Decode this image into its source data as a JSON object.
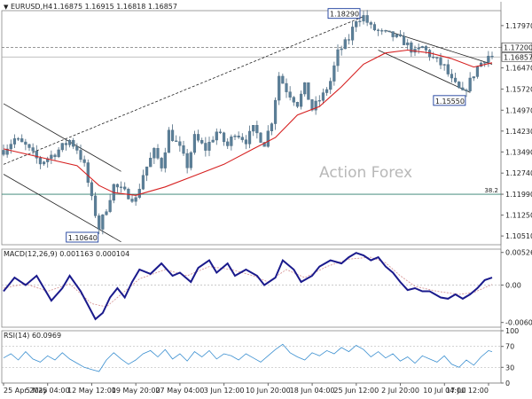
{
  "chart_data": [
    {
      "type": "candlestick",
      "header": {
        "symbol": "EURUSD,H4",
        "ohlc": "1.16875 1.16915 1.16818 1.16857"
      },
      "watermark": "Action Forex",
      "x_ticks": [
        "25 Apr 2025",
        "5 May 04:00",
        "12 May 12:00",
        "19 May 20:00",
        "27 May 04:00",
        "3 Jun 12:00",
        "10 Jun 20:00",
        "18 Jun 04:00",
        "25 Jun 12:00",
        "2 Jul 20:00",
        "10 Jul 04:00",
        "17 Jul 12:00"
      ],
      "y_ticks": [
        "1.17970",
        "1.17200",
        "1.16470",
        "1.15720",
        "1.14970",
        "1.14230",
        "1.13490",
        "1.12740",
        "1.11990",
        "1.11250",
        "1.10510"
      ],
      "ylim": [
        1.102,
        1.185
      ],
      "price_path": [
        [
          0,
          1.1355
        ],
        [
          3,
          1.1395
        ],
        [
          6,
          1.137
        ],
        [
          10,
          1.131
        ],
        [
          14,
          1.1345
        ],
        [
          18,
          1.139
        ],
        [
          20,
          1.136
        ],
        [
          22,
          1.13
        ],
        [
          24,
          1.118
        ],
        [
          26,
          1.108
        ],
        [
          28,
          1.115
        ],
        [
          30,
          1.123
        ],
        [
          33,
          1.1205
        ],
        [
          36,
          1.118
        ],
        [
          38,
          1.127
        ],
        [
          41,
          1.135
        ],
        [
          43,
          1.13
        ],
        [
          45,
          1.142
        ],
        [
          48,
          1.136
        ],
        [
          50,
          1.13
        ],
        [
          52,
          1.14
        ],
        [
          55,
          1.136
        ],
        [
          58,
          1.142
        ],
        [
          61,
          1.137
        ],
        [
          63,
          1.142
        ],
        [
          66,
          1.139
        ],
        [
          68,
          1.143
        ],
        [
          71,
          1.138
        ],
        [
          73,
          1.146
        ],
        [
          75,
          1.162
        ],
        [
          77,
          1.157
        ],
        [
          80,
          1.152
        ],
        [
          82,
          1.158
        ],
        [
          84,
          1.15
        ],
        [
          87,
          1.155
        ],
        [
          89,
          1.16
        ],
        [
          91,
          1.17
        ],
        [
          94,
          1.175
        ],
        [
          96,
          1.182
        ],
        [
          98,
          1.1829
        ],
        [
          100,
          1.179
        ],
        [
          103,
          1.177
        ],
        [
          106,
          1.176
        ],
        [
          109,
          1.174
        ],
        [
          112,
          1.17
        ],
        [
          114,
          1.172
        ],
        [
          117,
          1.168
        ],
        [
          120,
          1.165
        ],
        [
          122,
          1.16
        ],
        [
          124,
          1.157
        ],
        [
          125,
          1.1555
        ],
        [
          127,
          1.16
        ],
        [
          129,
          1.165
        ],
        [
          131,
          1.168
        ],
        [
          132,
          1.169
        ],
        [
          133,
          1.16857
        ]
      ],
      "ma_path": [
        [
          0,
          1.136
        ],
        [
          10,
          1.133
        ],
        [
          20,
          1.13
        ],
        [
          26,
          1.123
        ],
        [
          30,
          1.1205
        ],
        [
          36,
          1.1195
        ],
        [
          44,
          1.1225
        ],
        [
          52,
          1.1265
        ],
        [
          60,
          1.1305
        ],
        [
          68,
          1.136
        ],
        [
          74,
          1.14
        ],
        [
          80,
          1.148
        ],
        [
          86,
          1.151
        ],
        [
          92,
          1.158
        ],
        [
          98,
          1.166
        ],
        [
          104,
          1.17
        ],
        [
          110,
          1.171
        ],
        [
          116,
          1.17
        ],
        [
          122,
          1.168
        ],
        [
          128,
          1.165
        ],
        [
          133,
          1.1665
        ]
      ],
      "annotations": {
        "peak": {
          "label": "1.18290",
          "x": 98,
          "y": 1.1829
        },
        "low_may": {
          "label": "1.10640",
          "x": 26,
          "y": 1.1064
        },
        "low_jul": {
          "label": "1.15550",
          "x": 125,
          "y": 1.1555
        },
        "fib": {
          "label": "38.2",
          "y": 1.1199
        },
        "resistance": {
          "label": "1.17200",
          "y": 1.172
        },
        "last_price": {
          "label": "1.16857",
          "y": 1.16857
        },
        "trendline_up": [
          [
            0,
            1.1305
          ],
          [
            98,
            1.1829
          ]
        ],
        "channel_may_upper": [
          [
            0,
            1.152
          ],
          [
            32,
            1.128
          ]
        ],
        "channel_may_lower": [
          [
            0,
            1.127
          ],
          [
            32,
            1.103
          ]
        ],
        "channel_jul_upper": [
          [
            104,
            1.178
          ],
          [
            133,
            1.166
          ]
        ],
        "channel_jul_lower": [
          [
            102,
            1.171
          ],
          [
            127,
            1.156
          ]
        ]
      },
      "n_bars": 134
    },
    {
      "type": "macd",
      "header": "MACD(12,26,9) 0.001163 0.000104",
      "y_ticks": [
        "0.005267",
        "0.00",
        "-0.00604"
      ],
      "ylim": [
        -0.0068,
        0.0058
      ],
      "main_path": [
        [
          0,
          -0.001
        ],
        [
          3,
          0.0012
        ],
        [
          6,
          0.0
        ],
        [
          9,
          0.0015
        ],
        [
          13,
          -0.0025
        ],
        [
          16,
          -0.0005
        ],
        [
          18,
          0.0015
        ],
        [
          21,
          -0.001
        ],
        [
          25,
          -0.0055
        ],
        [
          27,
          -0.0045
        ],
        [
          29,
          -0.002
        ],
        [
          31,
          -0.0005
        ],
        [
          33,
          -0.002
        ],
        [
          35,
          0.0005
        ],
        [
          37,
          0.0025
        ],
        [
          40,
          0.0018
        ],
        [
          43,
          0.0035
        ],
        [
          46,
          0.0015
        ],
        [
          48,
          0.002
        ],
        [
          51,
          0.0005
        ],
        [
          53,
          0.0028
        ],
        [
          56,
          0.004
        ],
        [
          58,
          0.002
        ],
        [
          61,
          0.0035
        ],
        [
          63,
          0.0015
        ],
        [
          66,
          0.0025
        ],
        [
          69,
          0.0015
        ],
        [
          71,
          0.0
        ],
        [
          74,
          0.0012
        ],
        [
          76,
          0.004
        ],
        [
          79,
          0.0025
        ],
        [
          81,
          0.0005
        ],
        [
          84,
          0.0015
        ],
        [
          86,
          0.003
        ],
        [
          89,
          0.004
        ],
        [
          92,
          0.0035
        ],
        [
          94,
          0.0045
        ],
        [
          96,
          0.0052
        ],
        [
          98,
          0.0048
        ],
        [
          100,
          0.004
        ],
        [
          102,
          0.0045
        ],
        [
          104,
          0.003
        ],
        [
          106,
          0.002
        ],
        [
          108,
          0.0005
        ],
        [
          110,
          -0.0008
        ],
        [
          112,
          -0.0005
        ],
        [
          114,
          -0.001
        ],
        [
          116,
          -0.001
        ],
        [
          119,
          -0.002
        ],
        [
          121,
          -0.0022
        ],
        [
          123,
          -0.0015
        ],
        [
          125,
          -0.0022
        ],
        [
          127,
          -0.0015
        ],
        [
          129,
          -0.0005
        ],
        [
          131,
          0.0008
        ],
        [
          133,
          0.0012
        ]
      ],
      "signal_path": [
        [
          0,
          -0.0005
        ],
        [
          6,
          0.0002
        ],
        [
          12,
          -0.001
        ],
        [
          18,
          0.0002
        ],
        [
          24,
          -0.003
        ],
        [
          28,
          -0.0035
        ],
        [
          32,
          -0.0015
        ],
        [
          37,
          0.001
        ],
        [
          44,
          0.0025
        ],
        [
          50,
          0.0015
        ],
        [
          56,
          0.003
        ],
        [
          62,
          0.0025
        ],
        [
          68,
          0.0015
        ],
        [
          72,
          0.0005
        ],
        [
          77,
          0.0025
        ],
        [
          82,
          0.0012
        ],
        [
          88,
          0.003
        ],
        [
          94,
          0.0042
        ],
        [
          100,
          0.0045
        ],
        [
          104,
          0.0036
        ],
        [
          108,
          0.0015
        ],
        [
          112,
          -0.0002
        ],
        [
          118,
          -0.001
        ],
        [
          124,
          -0.0015
        ],
        [
          128,
          -0.0012
        ],
        [
          133,
          0.0001
        ]
      ]
    },
    {
      "type": "rsi",
      "header": "RSI(14) 60.0969",
      "y_ticks": [
        "100",
        "70",
        "30",
        "0"
      ],
      "ylim": [
        0,
        100
      ],
      "levels": [
        70,
        30
      ],
      "rsi_path": [
        [
          0,
          48
        ],
        [
          2,
          56
        ],
        [
          4,
          44
        ],
        [
          6,
          60
        ],
        [
          8,
          46
        ],
        [
          10,
          40
        ],
        [
          12,
          52
        ],
        [
          14,
          44
        ],
        [
          16,
          58
        ],
        [
          18,
          46
        ],
        [
          20,
          38
        ],
        [
          22,
          30
        ],
        [
          24,
          26
        ],
        [
          26,
          22
        ],
        [
          28,
          44
        ],
        [
          30,
          58
        ],
        [
          32,
          46
        ],
        [
          34,
          36
        ],
        [
          36,
          44
        ],
        [
          38,
          56
        ],
        [
          40,
          62
        ],
        [
          42,
          50
        ],
        [
          44,
          64
        ],
        [
          46,
          46
        ],
        [
          48,
          56
        ],
        [
          50,
          42
        ],
        [
          52,
          60
        ],
        [
          54,
          50
        ],
        [
          56,
          62
        ],
        [
          58,
          46
        ],
        [
          60,
          56
        ],
        [
          62,
          52
        ],
        [
          64,
          44
        ],
        [
          66,
          56
        ],
        [
          68,
          48
        ],
        [
          70,
          40
        ],
        [
          72,
          52
        ],
        [
          74,
          64
        ],
        [
          76,
          74
        ],
        [
          78,
          58
        ],
        [
          80,
          50
        ],
        [
          82,
          44
        ],
        [
          84,
          58
        ],
        [
          86,
          52
        ],
        [
          88,
          62
        ],
        [
          90,
          56
        ],
        [
          92,
          68
        ],
        [
          94,
          60
        ],
        [
          96,
          72
        ],
        [
          98,
          64
        ],
        [
          100,
          50
        ],
        [
          102,
          60
        ],
        [
          104,
          48
        ],
        [
          106,
          56
        ],
        [
          108,
          42
        ],
        [
          110,
          50
        ],
        [
          112,
          38
        ],
        [
          114,
          52
        ],
        [
          116,
          46
        ],
        [
          118,
          40
        ],
        [
          120,
          52
        ],
        [
          122,
          36
        ],
        [
          124,
          30
        ],
        [
          126,
          44
        ],
        [
          128,
          34
        ],
        [
          130,
          50
        ],
        [
          132,
          62
        ],
        [
          133,
          60
        ]
      ]
    }
  ]
}
